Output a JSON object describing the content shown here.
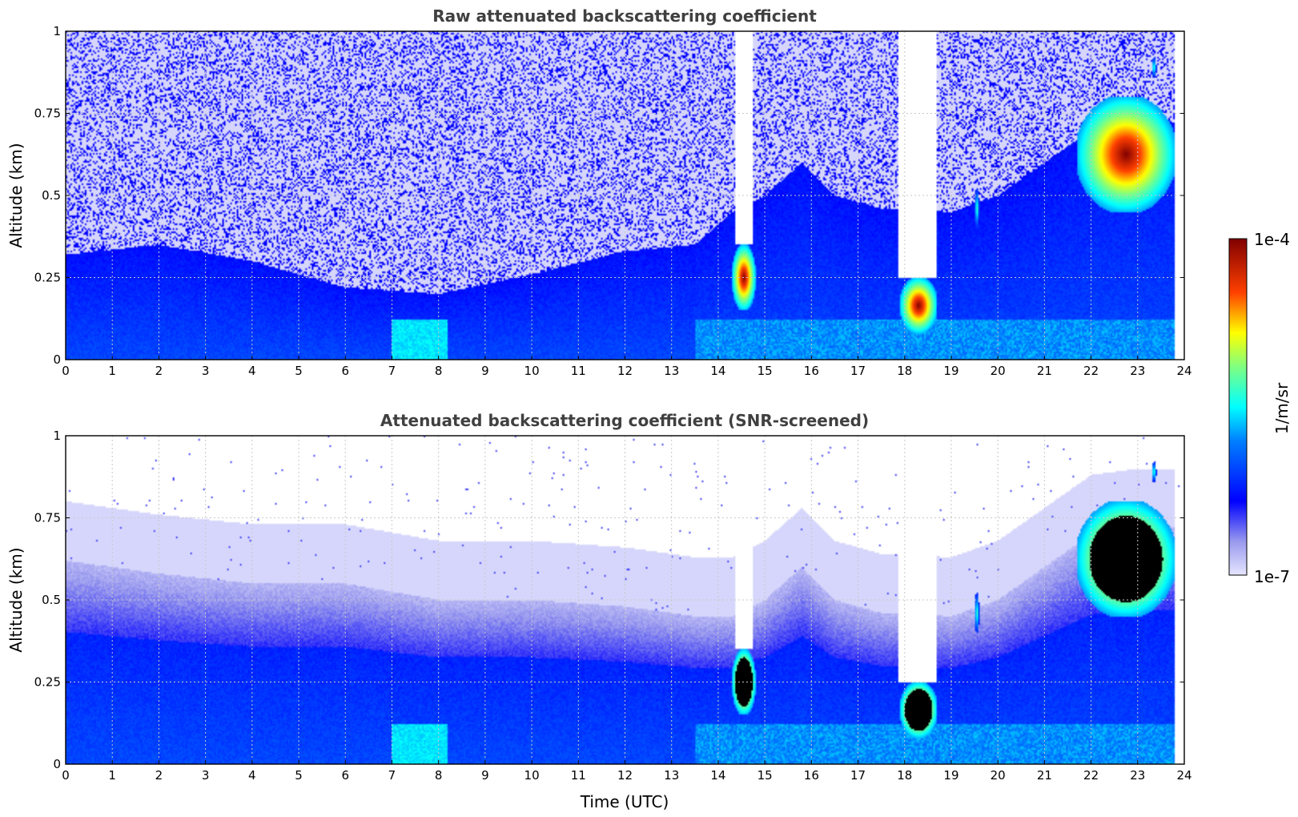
{
  "chart_data": [
    {
      "type": "heatmap",
      "id": "raw",
      "title": "Raw attenuated backscattering coefficient",
      "xlabel": "",
      "ylabel": "Altitude (km)",
      "xlim": [
        0,
        24
      ],
      "ylim": [
        0,
        1
      ],
      "x_ticks": [
        "0",
        "1",
        "2",
        "3",
        "4",
        "5",
        "6",
        "7",
        "8",
        "9",
        "10",
        "11",
        "12",
        "13",
        "14",
        "15",
        "16",
        "17",
        "18",
        "19",
        "20",
        "21",
        "22",
        "23",
        "24"
      ],
      "y_ticks": [
        "0",
        "0.25",
        "0.5",
        "0.75",
        "1"
      ],
      "grid": true,
      "screened": false,
      "layer_tops_km": [
        [
          0,
          0.32
        ],
        [
          2,
          0.35
        ],
        [
          4,
          0.3
        ],
        [
          6,
          0.22
        ],
        [
          8,
          0.2
        ],
        [
          10,
          0.26
        ],
        [
          12,
          0.33
        ],
        [
          13.5,
          0.35
        ],
        [
          14.3,
          0.45
        ],
        [
          15,
          0.5
        ],
        [
          15.8,
          0.6
        ],
        [
          16.5,
          0.5
        ],
        [
          17.5,
          0.46
        ],
        [
          19,
          0.45
        ],
        [
          20,
          0.5
        ],
        [
          21,
          0.6
        ],
        [
          22,
          0.7
        ],
        [
          23,
          0.72
        ],
        [
          23.8,
          0.72
        ]
      ],
      "clouds": [
        {
          "t_start": 14.3,
          "t_end": 14.8,
          "base_km": 0.15,
          "top_km": 0.35,
          "peak": "1e-4"
        },
        {
          "t_start": 17.9,
          "t_end": 18.7,
          "base_km": 0.08,
          "top_km": 0.25,
          "peak": "1e-4"
        },
        {
          "t_start": 21.7,
          "t_end": 23.8,
          "base_km": 0.45,
          "top_km": 0.8,
          "peak": "1e-4"
        },
        {
          "t_start": 23.3,
          "t_end": 23.4,
          "base_km": 0.86,
          "top_km": 0.92,
          "peak": "1e-5"
        },
        {
          "t_start": 19.5,
          "t_end": 19.6,
          "base_km": 0.4,
          "top_km": 0.52,
          "peak": "1e-5"
        }
      ],
      "gaps_hours": [
        [
          14.35,
          14.75,
          0.35
        ],
        [
          17.85,
          18.7,
          0.25
        ]
      ],
      "data_end_hour": 23.8
    },
    {
      "type": "heatmap",
      "id": "screened",
      "title": "Attenuated backscattering coefficient (SNR-screened)",
      "xlabel": "Time (UTC)",
      "ylabel": "Altitude (km)",
      "xlim": [
        0,
        24
      ],
      "ylim": [
        0,
        1
      ],
      "x_ticks": [
        "0",
        "1",
        "2",
        "3",
        "4",
        "5",
        "6",
        "7",
        "8",
        "9",
        "10",
        "11",
        "12",
        "13",
        "14",
        "15",
        "16",
        "17",
        "18",
        "19",
        "20",
        "21",
        "22",
        "23",
        "24"
      ],
      "y_ticks": [
        "0",
        "0.25",
        "0.5",
        "0.75",
        "1"
      ],
      "grid": true,
      "screened": true,
      "layer_tops_km": [
        [
          0,
          0.62
        ],
        [
          2,
          0.58
        ],
        [
          4,
          0.55
        ],
        [
          6,
          0.55
        ],
        [
          8,
          0.5
        ],
        [
          10,
          0.5
        ],
        [
          12,
          0.48
        ],
        [
          13.5,
          0.45
        ],
        [
          14.3,
          0.45
        ],
        [
          15,
          0.5
        ],
        [
          15.8,
          0.6
        ],
        [
          16.5,
          0.5
        ],
        [
          17.5,
          0.46
        ],
        [
          19,
          0.45
        ],
        [
          20,
          0.5
        ],
        [
          21,
          0.6
        ],
        [
          22,
          0.7
        ],
        [
          23,
          0.72
        ],
        [
          23.8,
          0.72
        ]
      ],
      "clouds": [
        {
          "t_start": 14.3,
          "t_end": 14.8,
          "base_km": 0.15,
          "top_km": 0.35,
          "peak": "saturated"
        },
        {
          "t_start": 17.9,
          "t_end": 18.7,
          "base_km": 0.08,
          "top_km": 0.25,
          "peak": "saturated"
        },
        {
          "t_start": 21.7,
          "t_end": 23.8,
          "base_km": 0.45,
          "top_km": 0.8,
          "peak": "saturated"
        },
        {
          "t_start": 23.3,
          "t_end": 23.4,
          "base_km": 0.86,
          "top_km": 0.92,
          "peak": "1e-5"
        },
        {
          "t_start": 19.5,
          "t_end": 19.6,
          "base_km": 0.4,
          "top_km": 0.52,
          "peak": "1e-5"
        }
      ],
      "gaps_hours": [
        [
          14.35,
          14.75,
          0.35
        ],
        [
          17.85,
          18.7,
          0.25
        ]
      ],
      "data_end_hour": 23.8
    }
  ],
  "colorbar": {
    "max_label": "1e-4",
    "min_label": "1e-7",
    "unit_label": "1/m/sr",
    "colormap": "jet",
    "colors": [
      "#e6e6ff",
      "#0000ff",
      "#00ffff",
      "#ffff00",
      "#ff0000",
      "#800000"
    ]
  }
}
